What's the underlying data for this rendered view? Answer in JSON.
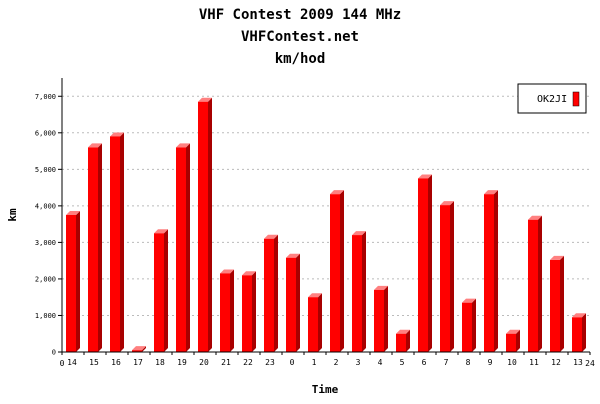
{
  "chart_data": {
    "type": "bar",
    "title": "VHF Contest 2009 144 MHz",
    "subtitle": "VHFContest.net",
    "subtitle2": "km/hod",
    "xlabel": "Time",
    "ylabel": "km",
    "x_start_label": "0",
    "x_end_label": "24",
    "categories": [
      "14",
      "15",
      "16",
      "17",
      "18",
      "19",
      "20",
      "21",
      "22",
      "23",
      "0",
      "1",
      "2",
      "3",
      "4",
      "5",
      "6",
      "7",
      "8",
      "9",
      "10",
      "11",
      "12",
      "13"
    ],
    "series": [
      {
        "name": "OK2JI",
        "values": [
          3750,
          5600,
          5900,
          50,
          3250,
          5600,
          6850,
          2150,
          2100,
          3100,
          2580,
          1500,
          4320,
          3200,
          1700,
          500,
          4750,
          4020,
          1350,
          4320,
          500,
          3620,
          2520,
          950
        ]
      }
    ],
    "yticks": [
      0,
      1000,
      2000,
      3000,
      4000,
      5000,
      6000,
      7000
    ],
    "ytick_labels": [
      "0",
      "1,000",
      "2,000",
      "3,000",
      "4,000",
      "5,000",
      "6,000",
      "7,000"
    ],
    "ylim": [
      0,
      7500
    ],
    "grid": true,
    "legend_position": "top-right",
    "colors": {
      "bar_front": "#ff0000",
      "bar_side": "#a80000",
      "bar_top": "#ff8080",
      "grid": "#bbbbbb",
      "axis": "#000000"
    }
  }
}
